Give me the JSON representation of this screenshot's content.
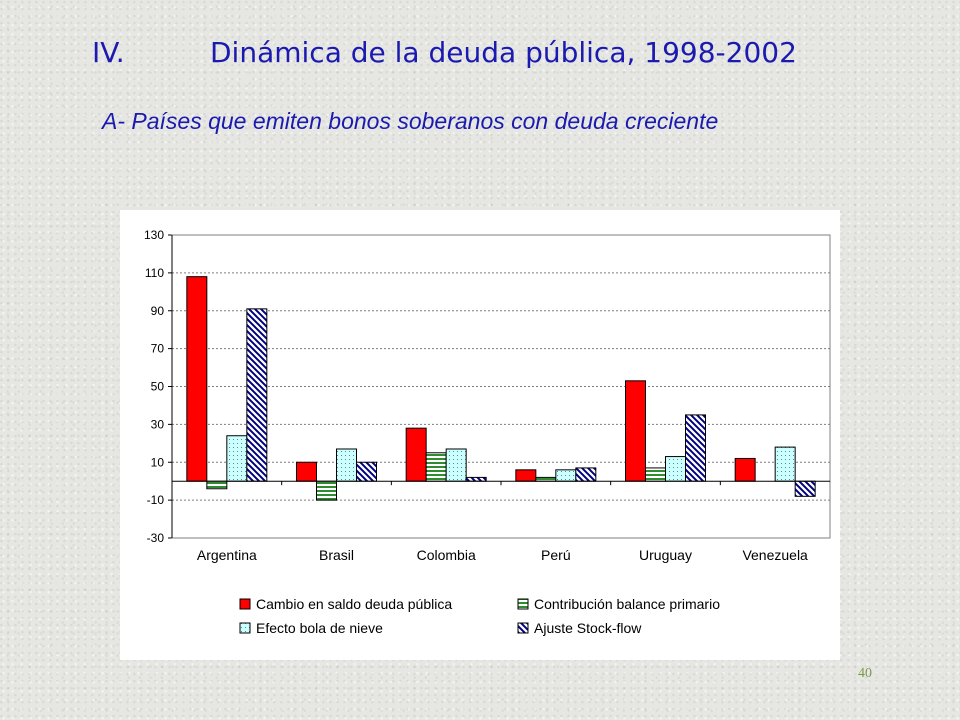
{
  "slide": {
    "section_number": "IV.",
    "title": "Dinámica de la deuda pública, 1998-2002",
    "subtitle": "A- Países que emiten bonos soberanos con deuda creciente",
    "page_number": "40"
  },
  "chart_data": {
    "type": "bar",
    "categories": [
      "Argentina",
      "Brasil",
      "Colombia",
      "Perú",
      "Uruguay",
      "Venezuela"
    ],
    "yticks": [
      "130",
      "110",
      "90",
      "70",
      "50",
      "30",
      "10",
      "-10",
      "-30"
    ],
    "ylim": [
      -30,
      130
    ],
    "grid": true,
    "legend_position": "bottom",
    "series": [
      {
        "name": "Cambio en saldo deuda pública",
        "values": [
          108,
          10,
          28,
          6,
          53,
          12
        ],
        "color": "#ff0000",
        "pattern": "solid"
      },
      {
        "name": "Contribución balance primario",
        "values": [
          -4,
          -10,
          15,
          2,
          7,
          null
        ],
        "color": "#2e8b2e",
        "pattern": "horizontal-lines"
      },
      {
        "name": "Efecto bola de nieve",
        "values": [
          24,
          17,
          17,
          6,
          13,
          18
        ],
        "color": "#ccffff",
        "pattern": "dots"
      },
      {
        "name": "Ajuste Stock-flow",
        "values": [
          91,
          10,
          2,
          7,
          35,
          -8
        ],
        "color": "#000080",
        "pattern": "diagonal-lines"
      }
    ]
  }
}
